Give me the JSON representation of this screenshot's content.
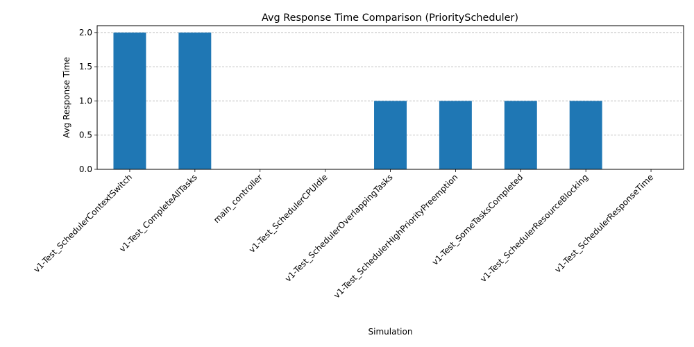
{
  "chart_data": {
    "type": "bar",
    "title": "Avg Response Time Comparison (PriorityScheduler)",
    "xlabel": "Simulation",
    "ylabel": "Avg Response Time",
    "categories": [
      "v1-Test_SchedulerContextSwitch",
      "v1-Test_CompleteAllTasks",
      "main_controller",
      "v1-Test_SchedulerCPUIdle",
      "v1-Test_SchedulerOverlappingTasks",
      "v1-Test_SchedulerHighPriorityPreemption",
      "v1-Test_SomeTasksCompleted",
      "v1-Test_SchedulerResourceBlocking",
      "v1-Test_SchedulerResponseTime"
    ],
    "values": [
      2.0,
      2.0,
      0.0,
      0.0,
      1.0,
      1.0,
      1.0,
      1.0,
      0.0
    ],
    "ylim": [
      0,
      2.1
    ],
    "yticks": [
      "0.0",
      "0.5",
      "1.0",
      "1.5",
      "2.0"
    ],
    "grid": "y-dashed",
    "bar_color": "#1f77b4",
    "grid_color": "#b0b0b0"
  }
}
